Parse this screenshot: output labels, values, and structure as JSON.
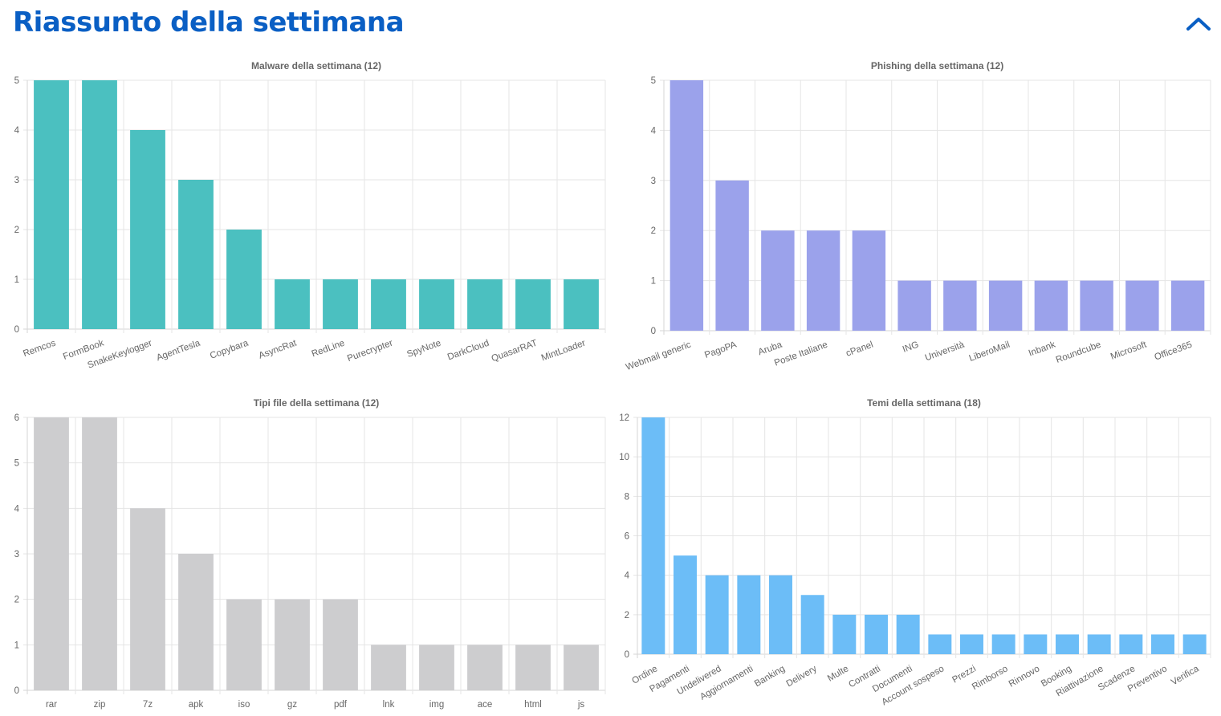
{
  "header": {
    "title": "Riassunto della settimana",
    "collapse_icon": "chevron-up-icon",
    "accent_color": "#0a5fc4"
  },
  "chart_data": [
    {
      "id": "malware",
      "type": "bar",
      "title": "Malware della settimana (12)",
      "categories": [
        "Remcos",
        "FormBook",
        "SnakeKeylogger",
        "AgentTesla",
        "Copybara",
        "AsyncRat",
        "RedLine",
        "Purecrypter",
        "SpyNote",
        "DarkCloud",
        "QuasarRAT",
        "MintLoader"
      ],
      "values": [
        5,
        5,
        4,
        3,
        2,
        1,
        1,
        1,
        1,
        1,
        1,
        1
      ],
      "ylim": [
        0,
        5
      ],
      "yticks": [
        0,
        1,
        2,
        3,
        4,
        5
      ],
      "xlabel": "",
      "ylabel": "",
      "grid": true,
      "color": "#4bc0c0",
      "label_rotation": -20
    },
    {
      "id": "phishing",
      "type": "bar",
      "title": "Phishing della settimana (12)",
      "categories": [
        "Webmail generic",
        "PagoPA",
        "Aruba",
        "Poste Italiane",
        "cPanel",
        "ING",
        "Università",
        "LiberoMail",
        "Inbank",
        "Roundcube",
        "Microsoft",
        "Office365"
      ],
      "values": [
        5,
        3,
        2,
        2,
        2,
        1,
        1,
        1,
        1,
        1,
        1,
        1
      ],
      "ylim": [
        0,
        5
      ],
      "yticks": [
        0,
        1,
        2,
        3,
        4,
        5
      ],
      "xlabel": "",
      "ylabel": "",
      "grid": true,
      "color": "#9ba2eb",
      "label_rotation": -20
    },
    {
      "id": "filetypes",
      "type": "bar",
      "title": "Tipi file della settimana (12)",
      "categories": [
        "rar",
        "zip",
        "7z",
        "apk",
        "iso",
        "gz",
        "pdf",
        "lnk",
        "img",
        "ace",
        "html",
        "js"
      ],
      "values": [
        6,
        6,
        4,
        3,
        2,
        2,
        2,
        1,
        1,
        1,
        1,
        1
      ],
      "ylim": [
        0,
        6
      ],
      "yticks": [
        0,
        1,
        2,
        3,
        4,
        5,
        6
      ],
      "xlabel": "",
      "ylabel": "",
      "grid": true,
      "color": "#cdcdcf",
      "label_rotation": 0
    },
    {
      "id": "themes",
      "type": "bar",
      "title": "Temi della settimana (18)",
      "categories": [
        "Ordine",
        "Pagamenti",
        "Undelivered",
        "Aggiornamenti",
        "Banking",
        "Delivery",
        "Multe",
        "Contratti",
        "Documenti",
        "Account sospeso",
        "Prezzi",
        "Rimborso",
        "Rinnovo",
        "Booking",
        "Riattivazione",
        "Scadenze",
        "Preventivo",
        "Verifica"
      ],
      "values": [
        12,
        5,
        4,
        4,
        4,
        3,
        2,
        2,
        2,
        1,
        1,
        1,
        1,
        1,
        1,
        1,
        1,
        1
      ],
      "ylim": [
        0,
        12
      ],
      "yticks": [
        0,
        2,
        4,
        6,
        8,
        10,
        12
      ],
      "xlabel": "",
      "ylabel": "",
      "grid": true,
      "color": "#6cbdf7",
      "label_rotation": -30
    }
  ]
}
